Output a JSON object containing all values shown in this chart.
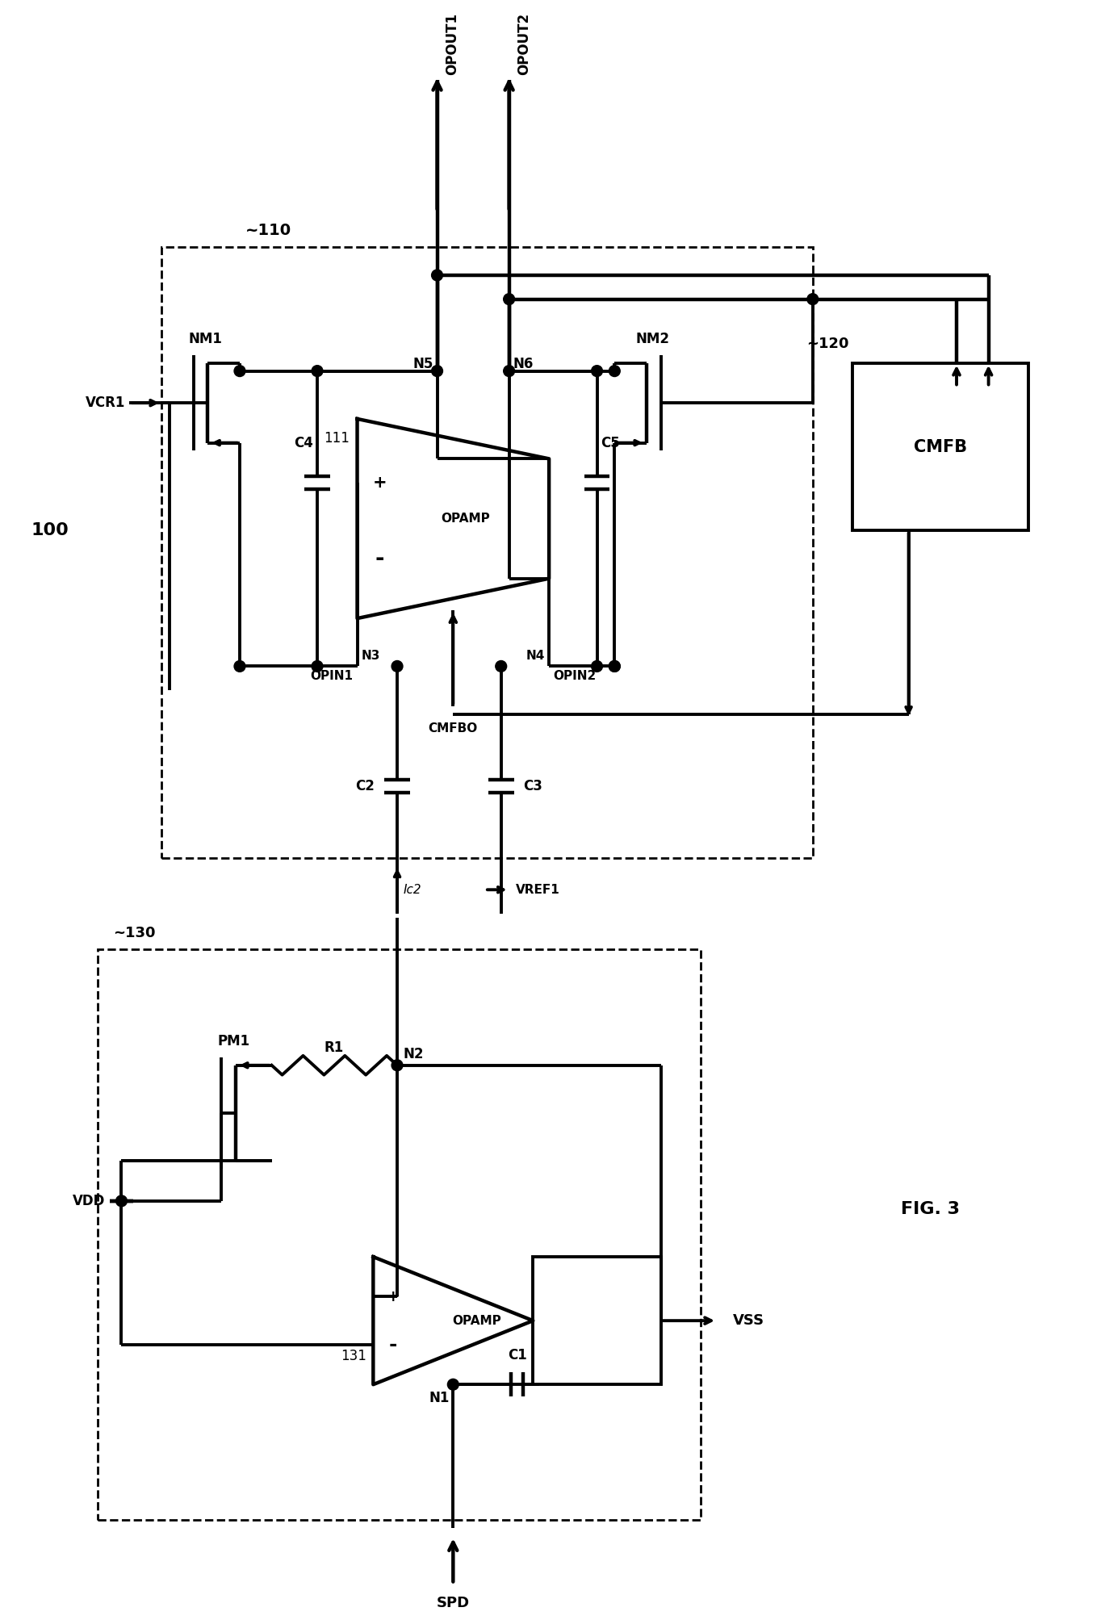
{
  "fig_width": 13.85,
  "fig_height": 20.07,
  "bg_color": "#ffffff",
  "line_color": "#000000",
  "label_100": "100",
  "label_110": "~110",
  "label_120": "~120",
  "label_130": "~130",
  "label_131": "131",
  "label_111": "111",
  "fig3_label": "FIG. 3"
}
